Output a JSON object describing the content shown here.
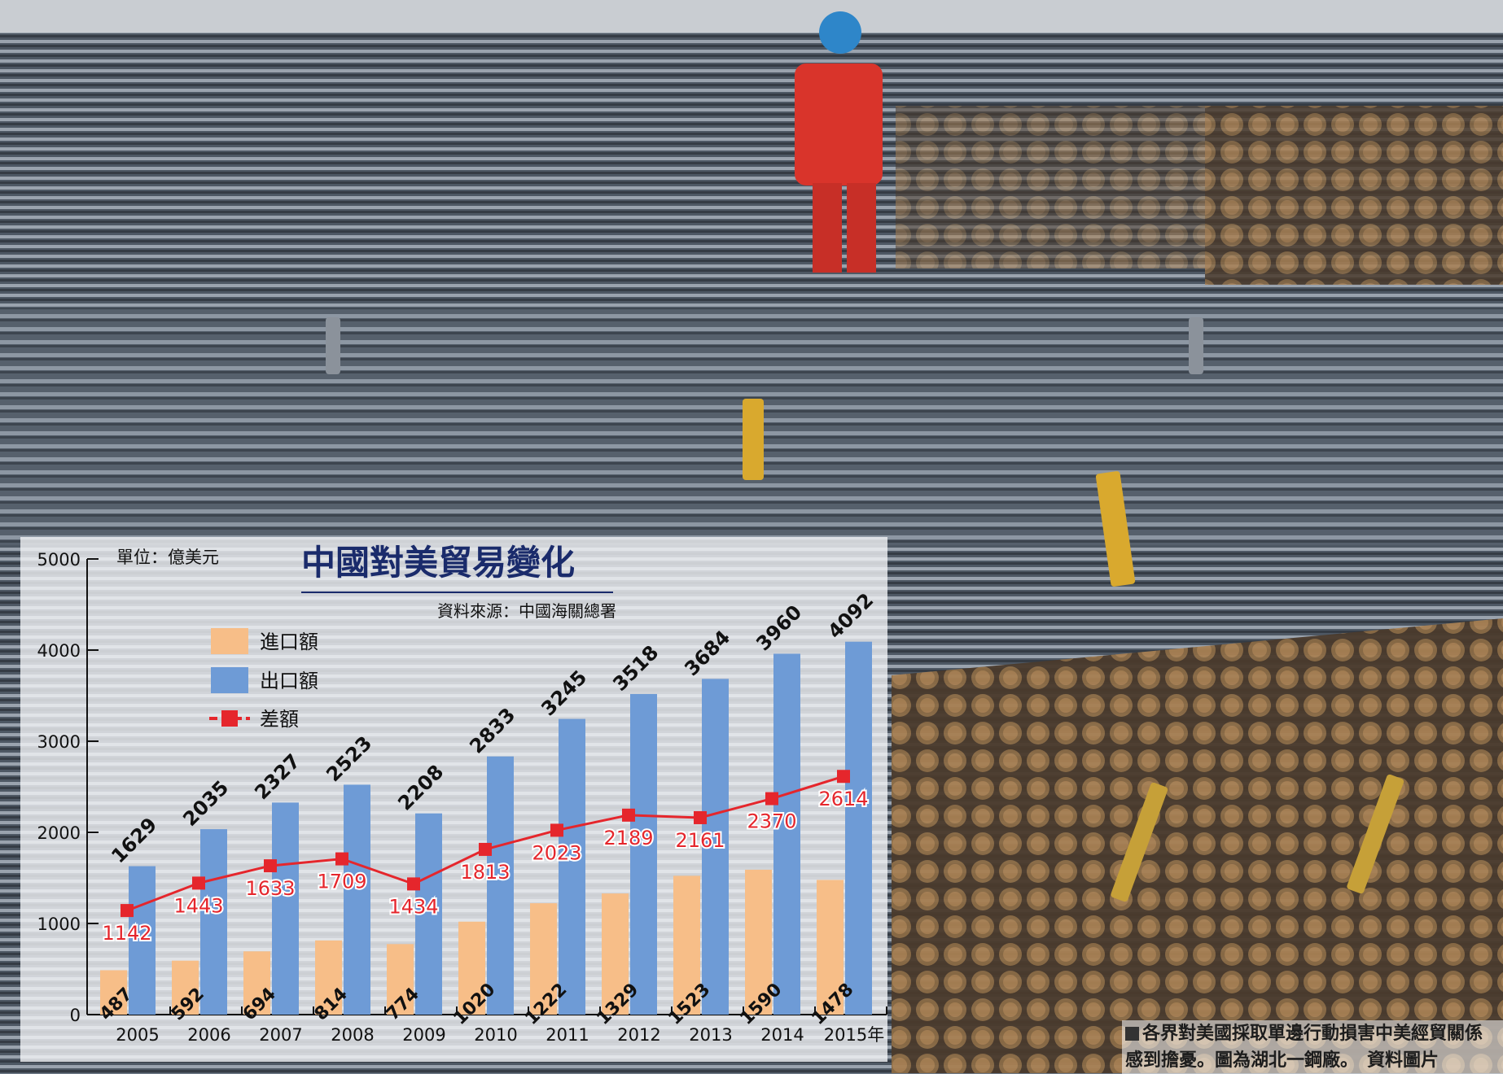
{
  "colors": {
    "import_bar": "#F7BE88",
    "export_bar": "#6E9BD6",
    "balance_line": "#E5262C",
    "title_text": "#1A2B6B"
  },
  "chart_data": {
    "type": "bar",
    "title": "中國對美貿易變化",
    "unit_label": "單位：億美元",
    "source": "資料來源：中國海關總署",
    "categories": [
      "2005",
      "2006",
      "2007",
      "2008",
      "2009",
      "2010",
      "2011",
      "2012",
      "2013",
      "2014",
      "2015年"
    ],
    "yticks": [
      "0",
      "1000",
      "2000",
      "3000",
      "4000",
      "5000"
    ],
    "ylim": [
      0,
      5000
    ],
    "series": [
      {
        "name": "進口額",
        "kind": "bar",
        "values": [
          487,
          592,
          694,
          814,
          774,
          1020,
          1222,
          1329,
          1523,
          1590,
          1478
        ]
      },
      {
        "name": "出口額",
        "kind": "bar",
        "values": [
          1629,
          2035,
          2327,
          2523,
          2208,
          2833,
          3245,
          3518,
          3684,
          3960,
          4092
        ]
      },
      {
        "name": "差額",
        "kind": "line",
        "values": [
          1142,
          1443,
          1633,
          1709,
          1434,
          1813,
          2023,
          2189,
          2161,
          2370,
          2614
        ]
      }
    ],
    "legend_position": "top-left"
  },
  "caption": {
    "text": "各界對美國採取單邊行動損害中美經貿關係感到擔憂。圖為湖北一鋼廠。　資料圖片"
  }
}
